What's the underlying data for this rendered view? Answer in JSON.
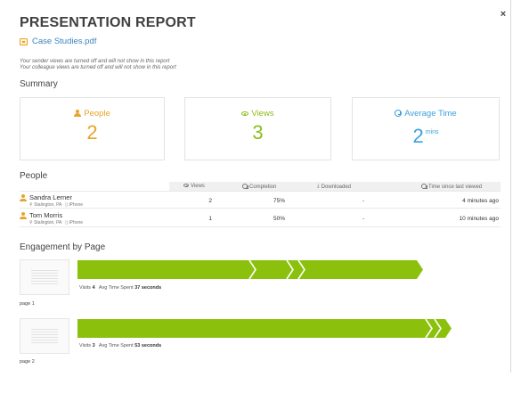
{
  "header": {
    "title": "PRESENTATION REPORT",
    "file_name": "Case Studies.pdf",
    "close_label": "×",
    "note_sender": "Your sender views are turned off and will not show in this report",
    "note_colleague": "Your colleague views are turned off and will not show in this report"
  },
  "summary": {
    "heading": "Summary",
    "people": {
      "label": "People",
      "value": "2",
      "color": "#e8a32a",
      "icon": "person-icon"
    },
    "views": {
      "label": "Views",
      "value": "3",
      "color": "#8bbd1a",
      "icon": "eye-icon"
    },
    "avg_time": {
      "label": "Average Time",
      "value": "2",
      "unit": "mins",
      "color": "#3aa0dd",
      "icon": "clock-icon"
    }
  },
  "people": {
    "heading": "People",
    "columns": {
      "views": "Views",
      "completion": "Completion",
      "downloaded": "Downloaded",
      "time_since": "Time since last viewed"
    },
    "rows": [
      {
        "name": "Sandra Lerner",
        "location": "Stalington, PA",
        "device": "iPhone",
        "views": "2",
        "completion": "75%",
        "downloaded": "-",
        "time_since": "4 minutes ago"
      },
      {
        "name": "Tom Morris",
        "location": "Stalington, PA",
        "device": "iPhone",
        "views": "1",
        "completion": "50%",
        "downloaded": "-",
        "time_since": "10 minutes ago"
      }
    ]
  },
  "engagement": {
    "heading": "Engagement by Page",
    "bar_color": "#8bc10c",
    "pages": [
      {
        "label": "page 1",
        "visits_label": "Visits",
        "visits": "4",
        "time_label": "Avg Time Spent",
        "time": "37 seconds",
        "segments": 3
      },
      {
        "label": "page 2",
        "visits_label": "Visits",
        "visits": "3",
        "time_label": "Avg Time Spent",
        "time": "53 seconds",
        "segments": 1
      }
    ]
  }
}
